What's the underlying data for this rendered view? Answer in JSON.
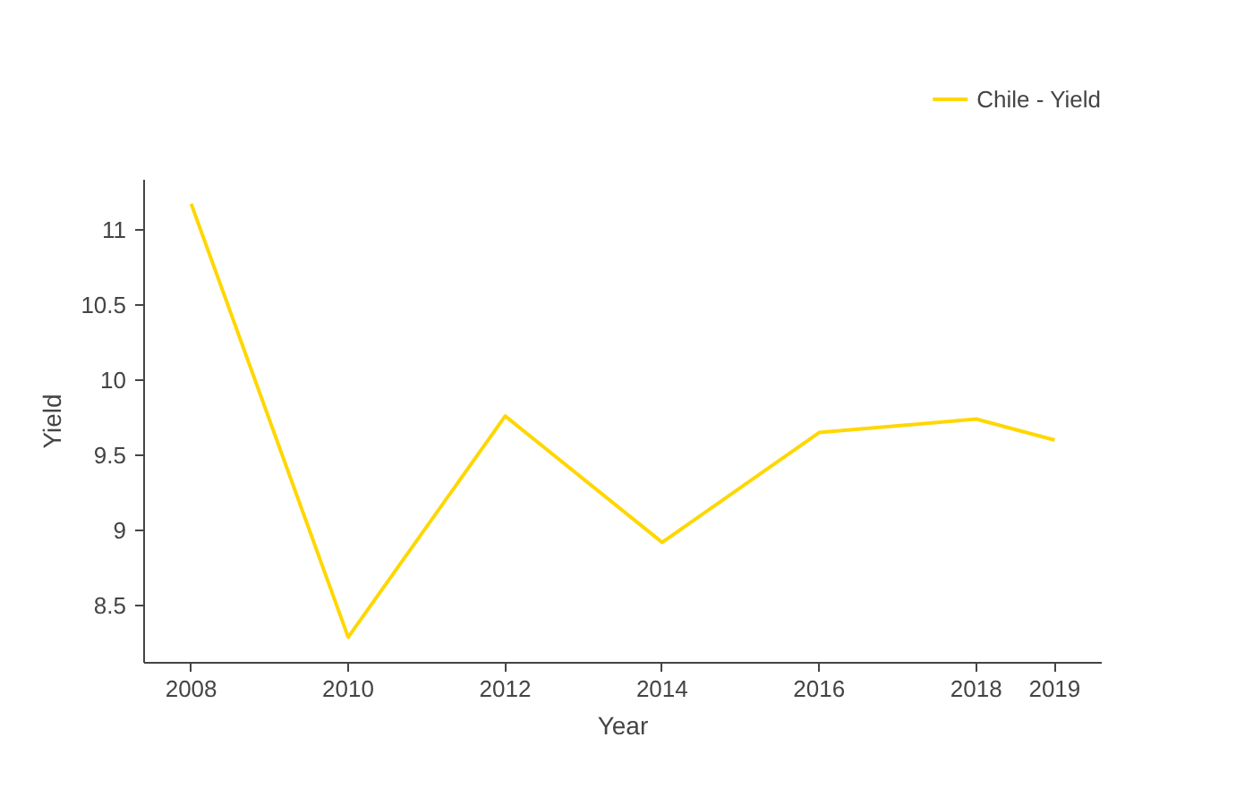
{
  "chart_data": {
    "type": "line",
    "xlabel": "Year",
    "ylabel": "Yield",
    "x": [
      2008,
      2010,
      2012,
      2014,
      2016,
      2018,
      2019
    ],
    "series": [
      {
        "name": "Chile - Yield",
        "color": "#ffd700",
        "values": [
          11.17,
          8.29,
          9.76,
          8.92,
          9.65,
          9.74,
          9.6
        ]
      }
    ],
    "xlim": [
      2007.4,
      2019.6
    ],
    "ylim": [
      8.12,
      11.33
    ],
    "xticks": [
      2008,
      2010,
      2012,
      2014,
      2016,
      2018,
      2019
    ],
    "yticks": [
      8.5,
      9,
      9.5,
      10,
      10.5,
      11
    ],
    "grid": false,
    "legend": "top right",
    "marker": "none",
    "line_style": "solid"
  }
}
